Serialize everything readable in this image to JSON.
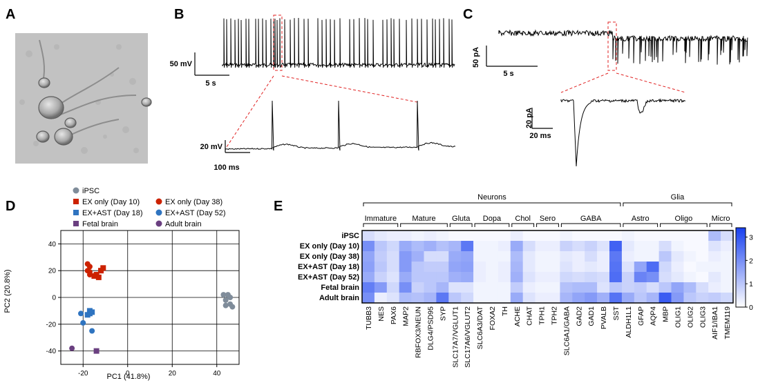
{
  "panels": {
    "A": {
      "letter": "A"
    },
    "B": {
      "letter": "B",
      "scale_top_v": "50 mV",
      "scale_top_t": "5 s",
      "scale_zoom_v": "20 mV",
      "scale_zoom_t": "100 ms"
    },
    "C": {
      "letter": "C",
      "scale_top_i": "50 pA",
      "scale_top_t": "5 s",
      "scale_zoom_i": "20 pA",
      "scale_zoom_t": "20 ms"
    },
    "D": {
      "letter": "D"
    },
    "E": {
      "letter": "E"
    }
  },
  "pca": {
    "legend": [
      {
        "label": "iPSC",
        "marker": "circle",
        "color": "#7f8c9a"
      },
      {
        "label": "EX only (Day 38)",
        "marker": "circle",
        "color": "#cc2200"
      },
      {
        "label": "EX only (Day 10)",
        "marker": "square",
        "color": "#cc2200"
      },
      {
        "label": "EX+AST (Day 52)",
        "marker": "circle",
        "color": "#2f74c0"
      },
      {
        "label": "EX+AST (Day 18)",
        "marker": "square",
        "color": "#2f74c0"
      },
      {
        "label": "Adult brain",
        "marker": "circle",
        "color": "#6a3f80"
      },
      {
        "label": "Fetal brain",
        "marker": "square",
        "color": "#6a3f80"
      }
    ],
    "xlabel": "PC1 (41.8%)",
    "ylabel": "PC2 (20.8%)",
    "x_ticks": [
      "-20",
      "0",
      "20",
      "40"
    ],
    "y_ticks": [
      "40",
      "20",
      "0",
      "-20",
      "-40"
    ]
  },
  "chart_data": {
    "type": "scatter",
    "xlim": [
      -30,
      50
    ],
    "ylim": [
      -50,
      50
    ],
    "series": [
      {
        "name": "iPSC",
        "color": "#7f8c9a",
        "marker": "circle",
        "points": [
          [
            43,
            2
          ],
          [
            45,
            2
          ],
          [
            44,
            -2
          ],
          [
            46,
            -5
          ],
          [
            44,
            -6
          ],
          [
            47,
            -7
          ],
          [
            46,
            0
          ]
        ]
      },
      {
        "name": "EX only (Day 38)",
        "color": "#cc2200",
        "marker": "circle",
        "points": [
          [
            -18,
            25
          ],
          [
            -17,
            23
          ],
          [
            -18,
            20
          ],
          [
            -17,
            17
          ],
          [
            -17,
            19
          ]
        ]
      },
      {
        "name": "EX only (Day 10)",
        "color": "#cc2200",
        "marker": "square",
        "points": [
          [
            -13,
            15
          ],
          [
            -12,
            20
          ],
          [
            -11,
            22
          ],
          [
            -14,
            17
          ],
          [
            -15,
            16
          ]
        ]
      },
      {
        "name": "EX+AST (Day 52)",
        "color": "#2f74c0",
        "marker": "circle",
        "points": [
          [
            -21,
            -12
          ],
          [
            -20,
            -19
          ],
          [
            -16,
            -25
          ]
        ]
      },
      {
        "name": "EX+AST (Day 18)",
        "color": "#2f74c0",
        "marker": "square",
        "points": [
          [
            -17,
            -10
          ],
          [
            -16,
            -11
          ],
          [
            -17,
            -12
          ],
          [
            -18,
            -13
          ]
        ]
      },
      {
        "name": "Adult brain",
        "color": "#6a3f80",
        "marker": "circle",
        "points": [
          [
            -25,
            -38
          ]
        ]
      },
      {
        "name": "Fetal brain",
        "color": "#6a3f80",
        "marker": "square",
        "points": [
          [
            -14,
            -40
          ]
        ]
      }
    ]
  },
  "heatmap": {
    "groups_top": [
      {
        "label": "Neurons",
        "from": 0,
        "to": 20
      },
      {
        "label": "Glia",
        "from": 21,
        "to": 29
      }
    ],
    "subgroups": [
      {
        "label": "Immature",
        "from": 0,
        "to": 2
      },
      {
        "label": "Mature",
        "from": 3,
        "to": 6
      },
      {
        "label": "Gluta",
        "from": 7,
        "to": 8
      },
      {
        "label": "Dopa",
        "from": 9,
        "to": 11
      },
      {
        "label": "Chol",
        "from": 12,
        "to": 13
      },
      {
        "label": "Sero",
        "from": 14,
        "to": 15
      },
      {
        "label": "GABA",
        "from": 16,
        "to": 20
      },
      {
        "label": "Astro",
        "from": 21,
        "to": 23
      },
      {
        "label": "Oligo",
        "from": 24,
        "to": 27
      },
      {
        "label": "Micro",
        "from": 28,
        "to": 29
      }
    ],
    "rows": [
      "iPSC",
      "EX only (Day 10)",
      "EX only (Day 38)",
      "EX+AST (Day 18)",
      "EX+AST (Day 52)",
      "Fetal brain",
      "Adult brain"
    ],
    "columns": [
      "TUBB3",
      "NES",
      "PAX6",
      "MAP2",
      "RBFOX3/NEUN",
      "DLG4/PSD95",
      "SYP",
      "SLC17A7/VGLUT1",
      "SLC17A6/VGLUT2",
      "SLC6A3/DAT",
      "FOXA2",
      "TH",
      "ACHE",
      "CHAT",
      "TPH1",
      "TPH2",
      "SLC6A1/GABA",
      "GAD2",
      "GAD1",
      "PVALB",
      "SST",
      "ALDH1L1",
      "GFAP",
      "AQP4",
      "MBP",
      "OLIG1",
      "OLIG2",
      "OLIG3",
      "AIF1/IBA1",
      "TMEM119"
    ],
    "colorbar_ticks": [
      "3",
      "2",
      "1",
      "0"
    ],
    "vmax": 3.4,
    "values": [
      [
        0.6,
        0.4,
        0.3,
        0.3,
        0.2,
        0.3,
        0.2,
        0.1,
        0.1,
        0.1,
        0.1,
        0.1,
        0.3,
        0.1,
        0.1,
        0.1,
        0.2,
        0.1,
        0.1,
        0.1,
        0.1,
        0.2,
        0.1,
        0.1,
        0.1,
        0.1,
        0.1,
        0.1,
        1.2,
        0.6
      ],
      [
        2.0,
        1.0,
        0.7,
        1.5,
        1.2,
        1.4,
        1.1,
        1.3,
        2.4,
        0.2,
        0.2,
        0.3,
        1.5,
        0.6,
        0.3,
        0.3,
        0.8,
        0.6,
        0.8,
        0.5,
        2.8,
        0.4,
        0.2,
        0.2,
        0.6,
        0.2,
        0.1,
        0.1,
        0.5,
        0.3
      ],
      [
        1.6,
        0.9,
        0.6,
        1.8,
        1.4,
        0.6,
        0.6,
        1.5,
        1.6,
        0.2,
        0.2,
        0.2,
        1.2,
        0.4,
        0.2,
        0.2,
        0.4,
        0.3,
        0.6,
        0.3,
        2.4,
        0.3,
        0.2,
        0.2,
        1.0,
        0.4,
        0.2,
        0.1,
        0.3,
        0.2
      ],
      [
        1.7,
        1.0,
        0.6,
        1.8,
        1.0,
        0.9,
        0.9,
        1.6,
        1.7,
        0.3,
        0.2,
        0.3,
        1.3,
        0.4,
        0.2,
        0.2,
        0.5,
        0.3,
        0.4,
        0.3,
        2.5,
        0.5,
        1.6,
        2.6,
        0.7,
        0.3,
        0.1,
        0.2,
        0.2,
        0.2
      ],
      [
        1.5,
        0.8,
        0.5,
        1.5,
        1.0,
        1.0,
        1.0,
        1.4,
        1.5,
        0.3,
        0.2,
        0.3,
        1.4,
        0.5,
        0.3,
        0.3,
        0.7,
        0.6,
        0.7,
        0.6,
        2.6,
        0.8,
        2.2,
        2.0,
        0.6,
        0.4,
        0.2,
        0.1,
        0.4,
        0.2
      ],
      [
        2.3,
        1.8,
        0.7,
        2.0,
        0.8,
        1.0,
        1.3,
        0.5,
        0.5,
        0.2,
        0.2,
        0.2,
        0.9,
        0.3,
        0.2,
        0.2,
        1.1,
        1.2,
        1.2,
        0.5,
        1.0,
        0.8,
        0.9,
        0.6,
        1.0,
        1.6,
        1.2,
        0.6,
        0.3,
        0.2
      ],
      [
        2.0,
        0.3,
        0.5,
        1.2,
        1.1,
        1.3,
        2.4,
        1.0,
        0.7,
        0.2,
        0.2,
        0.2,
        1.5,
        0.5,
        0.3,
        0.3,
        1.3,
        1.6,
        1.8,
        1.4,
        2.5,
        1.5,
        1.0,
        1.3,
        2.9,
        1.8,
        1.0,
        0.8,
        0.9,
        0.7
      ]
    ]
  }
}
